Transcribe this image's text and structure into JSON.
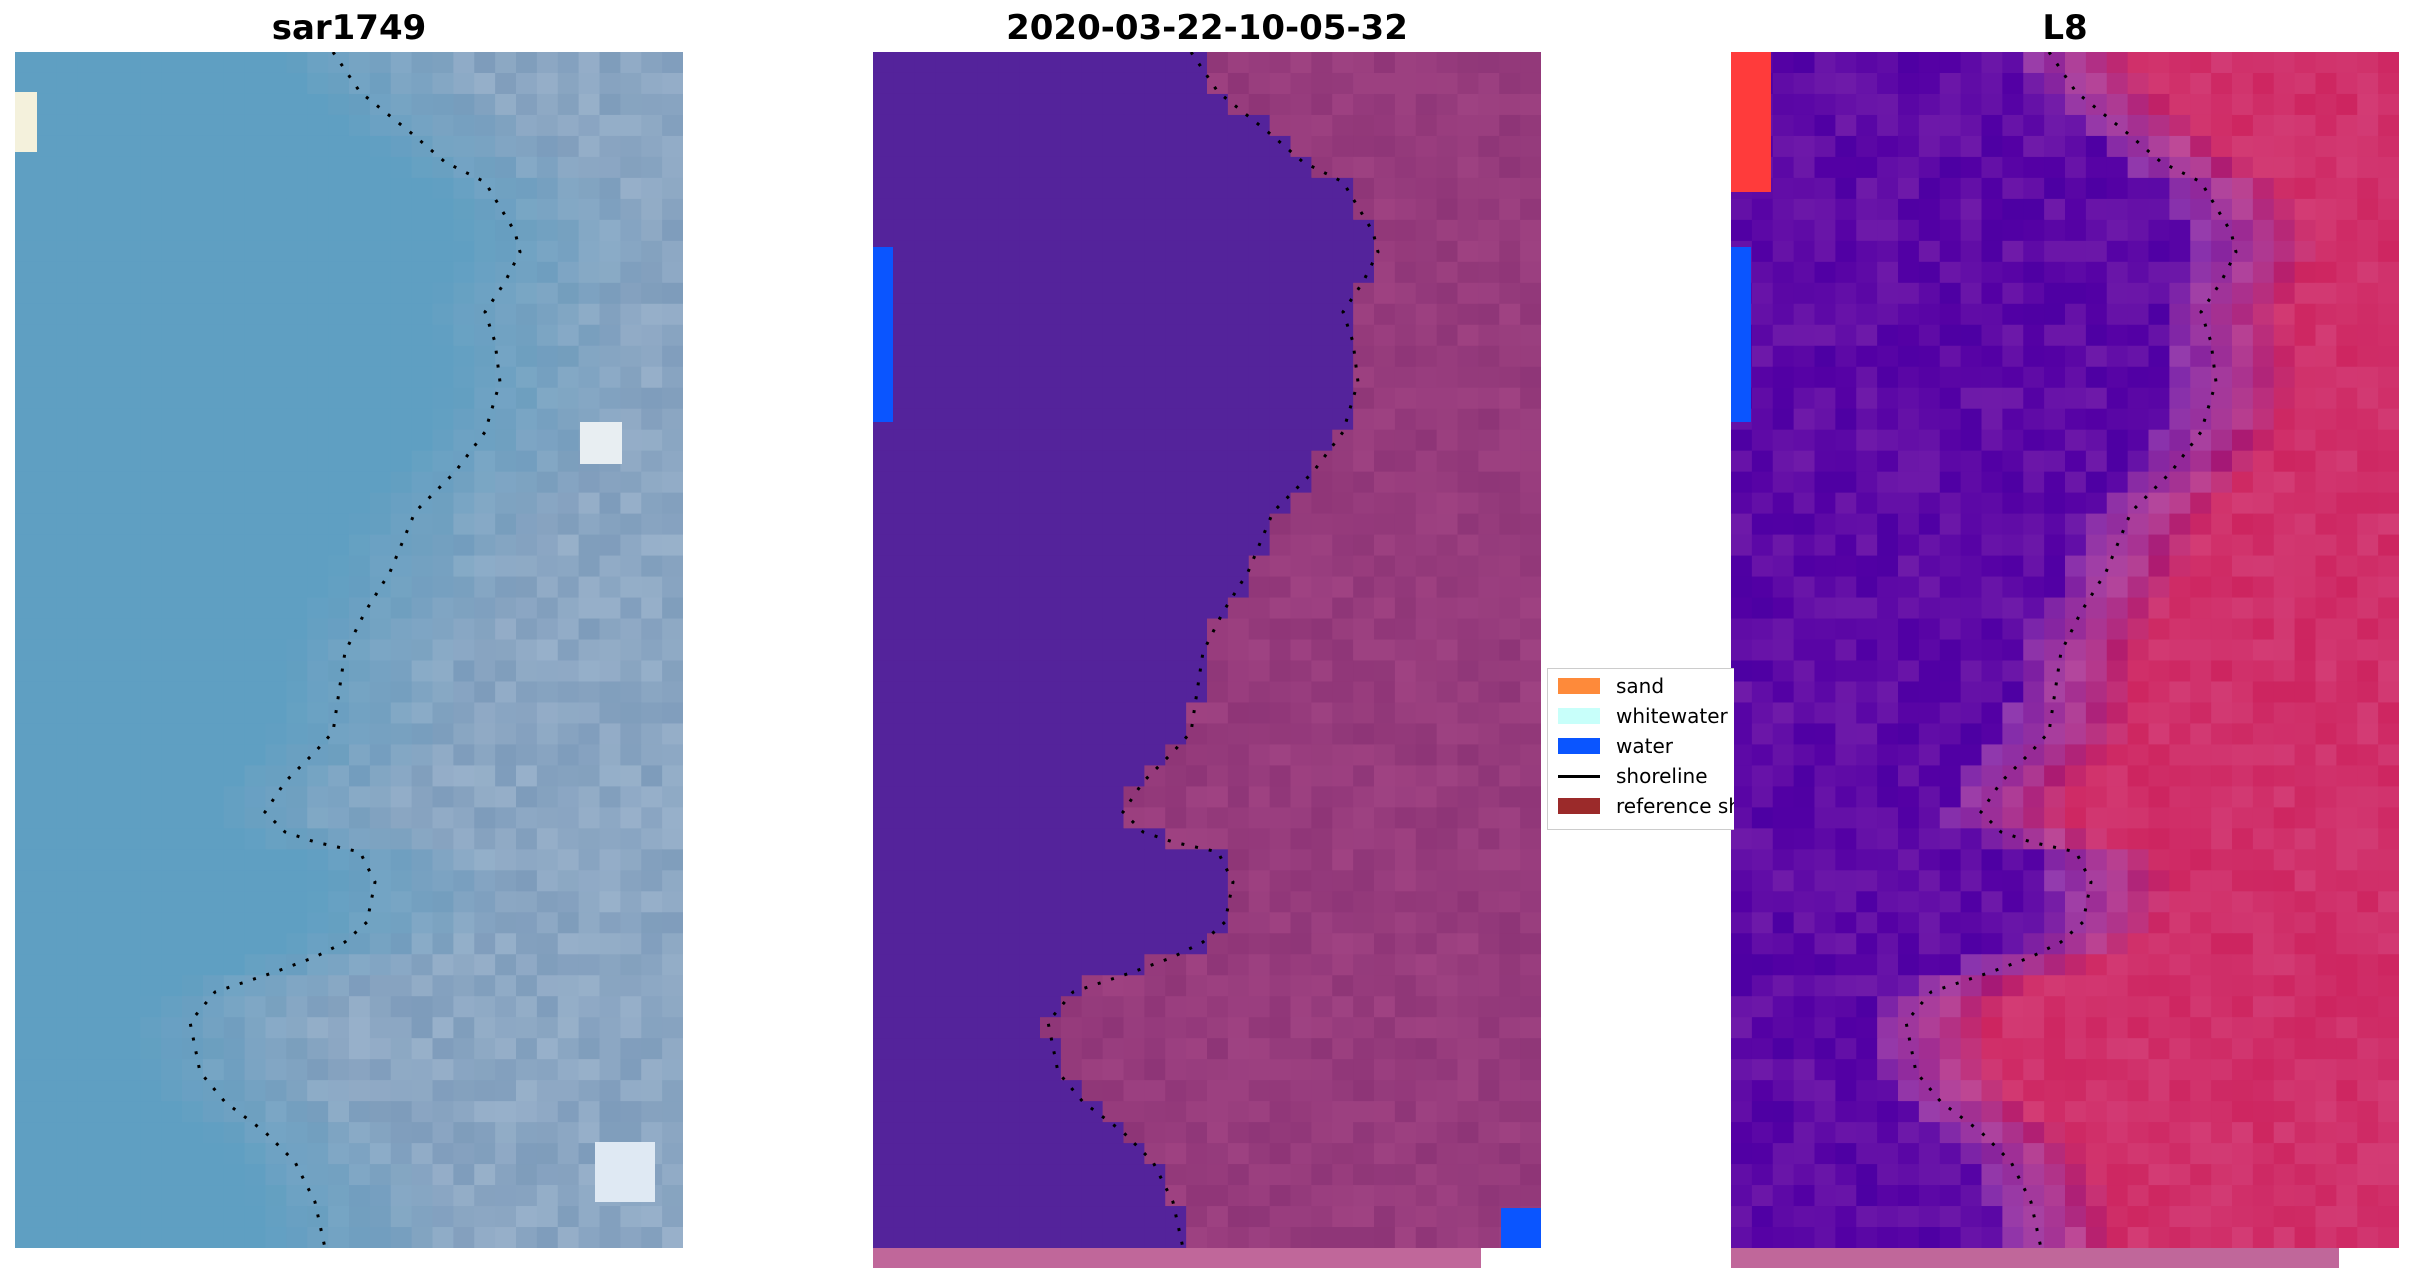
{
  "panels": [
    {
      "title": "sar1749",
      "palette": "rgb"
    },
    {
      "title": "2020-03-22-10-05-32",
      "palette": "classified"
    },
    {
      "title": "L8",
      "palette": "mndwi"
    }
  ],
  "legend": {
    "items": [
      {
        "label": "sand",
        "color": "#fe8a3a",
        "kind": "patch"
      },
      {
        "label": "whitewater",
        "color": "#c8fffa",
        "kind": "patch"
      },
      {
        "label": "water",
        "color": "#0a55ff",
        "kind": "patch"
      },
      {
        "label": "shoreline",
        "color": "#000000",
        "kind": "line"
      },
      {
        "label": "reference shoreline",
        "color": "#9b2a2a",
        "kind": "patch"
      }
    ]
  },
  "colors": {
    "rgb_water": "#5f9fc2",
    "rgb_land": "#7e9cbb",
    "classified_water": "#54239b",
    "classified_land": "#8e3577",
    "mndwi_water": "#5e0aa6",
    "mndwi_land": "#d0306a",
    "strip": "#c0679a"
  }
}
